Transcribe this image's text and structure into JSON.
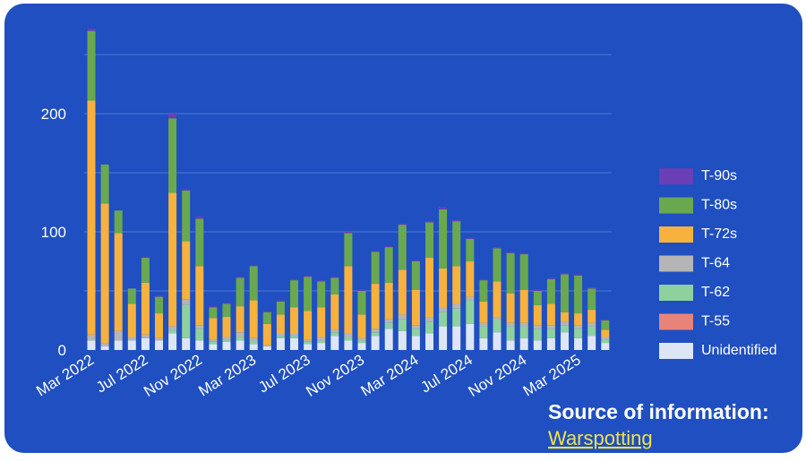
{
  "chart_data": {
    "type": "stacked_bar",
    "categories": [
      "Mar 2022",
      null,
      null,
      null,
      "Jul 2022",
      null,
      null,
      null,
      "Nov 2022",
      null,
      null,
      null,
      "Mar 2023",
      null,
      null,
      null,
      "Jul 2023",
      null,
      null,
      null,
      "Nov 2023",
      null,
      null,
      null,
      "Mar 2024",
      null,
      null,
      null,
      "Jul 2024",
      null,
      null,
      null,
      "Nov 2024",
      null,
      null,
      null,
      "Mar 2025",
      null,
      null
    ],
    "series": [
      {
        "name": "Unidentified",
        "color": "#dde6f5",
        "values": [
          8,
          3,
          8,
          8,
          10,
          8,
          14,
          10,
          8,
          5,
          7,
          8,
          5,
          3,
          10,
          10,
          5,
          6,
          12,
          8,
          6,
          12,
          18,
          16,
          12,
          14,
          20,
          20,
          22,
          10,
          15,
          8,
          10,
          8,
          10,
          15,
          10,
          12,
          6
        ]
      },
      {
        "name": "T-55",
        "color": "#e8837a",
        "values": [
          0,
          0,
          0,
          0,
          0,
          0,
          0,
          0,
          0,
          0,
          0,
          0,
          0,
          0,
          0,
          0,
          0,
          0,
          0,
          0,
          0,
          0,
          0,
          0,
          0,
          0,
          0,
          0,
          0,
          0,
          0,
          0,
          0,
          0,
          0,
          0,
          0,
          0,
          0
        ]
      },
      {
        "name": "T-62",
        "color": "#8fd19e",
        "values": [
          0,
          0,
          0,
          0,
          0,
          0,
          3,
          28,
          10,
          2,
          2,
          3,
          3,
          0,
          2,
          2,
          2,
          2,
          3,
          3,
          2,
          3,
          5,
          10,
          6,
          10,
          12,
          15,
          20,
          10,
          10,
          12,
          10,
          10,
          8,
          6,
          8,
          8,
          3
        ]
      },
      {
        "name": "T-64",
        "color": "#b5b5b5",
        "values": [
          5,
          3,
          8,
          3,
          3,
          2,
          3,
          5,
          3,
          2,
          2,
          4,
          2,
          1,
          2,
          2,
          2,
          3,
          2,
          3,
          2,
          3,
          3,
          4,
          3,
          4,
          4,
          4,
          3,
          3,
          3,
          3,
          3,
          3,
          3,
          3,
          3,
          3,
          2
        ]
      },
      {
        "name": "T-72s",
        "color": "#f6b23c",
        "values": [
          198,
          118,
          83,
          28,
          44,
          21,
          113,
          49,
          50,
          18,
          17,
          22,
          32,
          18,
          16,
          22,
          24,
          25,
          30,
          57,
          20,
          38,
          31,
          38,
          30,
          50,
          33,
          32,
          30,
          18,
          30,
          25,
          28,
          17,
          18,
          8,
          10,
          11,
          6
        ]
      },
      {
        "name": "T-80s",
        "color": "#6aa84f",
        "values": [
          59,
          33,
          19,
          13,
          21,
          14,
          63,
          43,
          40,
          9,
          11,
          24,
          29,
          10,
          11,
          23,
          29,
          22,
          14,
          28,
          20,
          27,
          30,
          38,
          24,
          30,
          50,
          38,
          19,
          18,
          28,
          34,
          30,
          12,
          21,
          32,
          32,
          18,
          8
        ]
      },
      {
        "name": "T-90s",
        "color": "#6a3fb5",
        "values": [
          2,
          0,
          0,
          0,
          1,
          1,
          4,
          1,
          2,
          1,
          1,
          1,
          1,
          1,
          1,
          1,
          1,
          1,
          1,
          1,
          1,
          1,
          1,
          1,
          1,
          1,
          2,
          1,
          1,
          1,
          1,
          1,
          1,
          1,
          1,
          1,
          1,
          1,
          1
        ]
      }
    ],
    "ylim": [
      0,
      275
    ],
    "yticks": [
      0,
      100,
      200
    ],
    "grid_ticks": [
      50,
      100,
      150,
      200,
      250
    ],
    "grid": true,
    "legend": "right",
    "source_label": "Source of information:",
    "source_link": "Warspotting"
  }
}
